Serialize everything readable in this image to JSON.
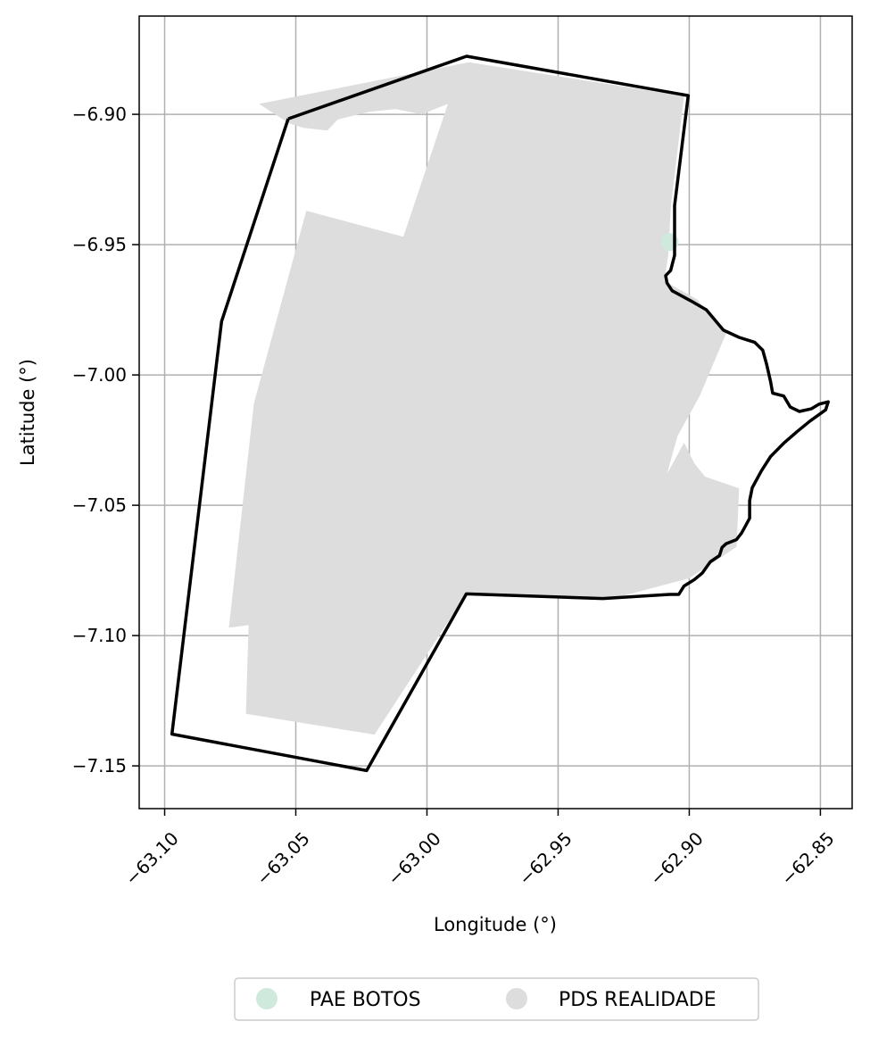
{
  "colors": {
    "background": "#ffffff",
    "grid": "#b0b0b0",
    "boundary": "#000000",
    "pae_botos": "#cfeadd",
    "pds_realidade": "#dddddd"
  },
  "axes": {
    "xlabel": "Longitude (°)",
    "ylabel": "Latitude (°)",
    "x_ticks": [
      "−63.10",
      "−63.05",
      "−63.00",
      "−62.95",
      "−62.90",
      "−62.85"
    ],
    "y_ticks": [
      "−6.90",
      "−6.95",
      "−7.00",
      "−7.05",
      "−7.10",
      "−7.15"
    ],
    "x_tick_values": [
      -63.1,
      -63.05,
      -63.0,
      -62.95,
      -62.9,
      -62.85
    ],
    "y_tick_values": [
      -6.9,
      -6.95,
      -7.0,
      -7.05,
      -7.1,
      -7.15
    ],
    "xlim": [
      -63.1097,
      -62.8379
    ],
    "ylim": [
      -7.1664,
      -6.8623
    ],
    "grid": true
  },
  "legend": {
    "position": "bottom-center",
    "items": [
      {
        "label": "PAE BOTOS",
        "color": "#cfeadd"
      },
      {
        "label": "PDS REALIDADE",
        "color": "#dddddd"
      }
    ]
  },
  "map_data": {
    "boundary": [
      [
        -63.0529,
        -6.9017
      ],
      [
        -62.9849,
        -6.8777
      ],
      [
        -62.9004,
        -6.8928
      ],
      [
        -62.9056,
        -6.935
      ],
      [
        -62.9056,
        -6.9541
      ],
      [
        -62.9071,
        -6.9599
      ],
      [
        -62.909,
        -6.9619
      ],
      [
        -62.9085,
        -6.9647
      ],
      [
        -62.9065,
        -6.9677
      ],
      [
        -62.8995,
        -6.9715
      ],
      [
        -62.8935,
        -6.975
      ],
      [
        -62.887,
        -6.9828
      ],
      [
        -62.881,
        -6.9856
      ],
      [
        -62.875,
        -6.9875
      ],
      [
        -62.872,
        -6.9905
      ],
      [
        -62.8705,
        -6.996
      ],
      [
        -62.869,
        -7.0026
      ],
      [
        -62.8682,
        -7.007
      ],
      [
        -62.864,
        -7.0081
      ],
      [
        -62.8615,
        -7.0123
      ],
      [
        -62.858,
        -7.014
      ],
      [
        -62.8535,
        -7.013
      ],
      [
        -62.8505,
        -7.0112
      ],
      [
        -62.847,
        -7.0103
      ],
      [
        -62.848,
        -7.0134
      ],
      [
        -62.854,
        -7.0177
      ],
      [
        -62.859,
        -7.0218
      ],
      [
        -62.864,
        -7.0262
      ],
      [
        -62.869,
        -7.0313
      ],
      [
        -62.8725,
        -7.0368
      ],
      [
        -62.876,
        -7.0433
      ],
      [
        -62.877,
        -7.0483
      ],
      [
        -62.877,
        -7.055
      ],
      [
        -62.88,
        -7.0606
      ],
      [
        -62.882,
        -7.0632
      ],
      [
        -62.886,
        -7.0648
      ],
      [
        -62.8875,
        -7.0662
      ],
      [
        -62.8885,
        -7.0693
      ],
      [
        -62.892,
        -7.0717
      ],
      [
        -62.895,
        -7.076
      ],
      [
        -62.898,
        -7.0785
      ],
      [
        -62.902,
        -7.081
      ],
      [
        -62.904,
        -7.0842
      ],
      [
        -62.9075,
        -7.0842
      ],
      [
        -62.933,
        -7.0858
      ],
      [
        -62.985,
        -7.084
      ],
      [
        -63.023,
        -7.1518
      ],
      [
        -63.0972,
        -7.1378
      ],
      [
        -63.0783,
        -6.9795
      ],
      [
        -63.0529,
        -6.9017
      ]
    ],
    "pds_realidade": [
      [
        -63.064,
        -6.896
      ],
      [
        -62.984,
        -6.88
      ],
      [
        -62.902,
        -6.893
      ],
      [
        -62.907,
        -6.935
      ],
      [
        -62.908,
        -6.954
      ],
      [
        -62.9095,
        -6.964
      ],
      [
        -62.897,
        -6.971
      ],
      [
        -62.8905,
        -6.979
      ],
      [
        -62.8855,
        -6.983
      ],
      [
        -62.896,
        -7.008
      ],
      [
        -62.9045,
        -7.0235
      ],
      [
        -62.9085,
        -7.038
      ],
      [
        -62.902,
        -7.026
      ],
      [
        -62.898,
        -7.034
      ],
      [
        -62.894,
        -7.039
      ],
      [
        -62.881,
        -7.0435
      ],
      [
        -62.882,
        -7.066
      ],
      [
        -62.9,
        -7.078
      ],
      [
        -62.93,
        -7.086
      ],
      [
        -62.985,
        -7.084
      ],
      [
        -63.02,
        -7.138
      ],
      [
        -63.069,
        -7.13
      ],
      [
        -63.068,
        -7.096
      ],
      [
        -63.0755,
        -7.097
      ],
      [
        -63.066,
        -7.011
      ],
      [
        -63.046,
        -6.937
      ],
      [
        -63.009,
        -6.947
      ],
      [
        -62.992,
        -6.896
      ],
      [
        -63.002,
        -6.9
      ],
      [
        -63.012,
        -6.898
      ],
      [
        -63.022,
        -6.899
      ],
      [
        -63.034,
        -6.902
      ],
      [
        -63.038,
        -6.9062
      ],
      [
        -63.047,
        -6.9052
      ],
      [
        -63.0525,
        -6.9035
      ]
    ],
    "pae_botos": [
      -62.9075,
      -6.949
    ]
  }
}
